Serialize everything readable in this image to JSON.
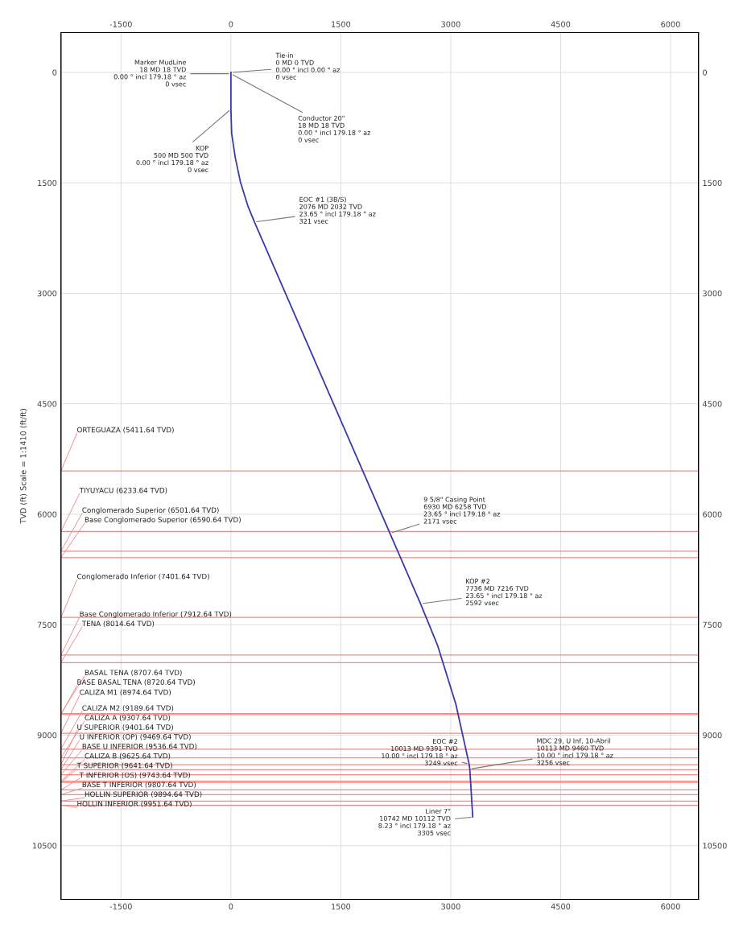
{
  "chart_data": {
    "type": "line",
    "ylabel": "TVD (ft) Scale = 1:1410 (ft/ft)",
    "xlim": [
      -2320,
      6380
    ],
    "xticks": [
      -1500,
      0,
      1500,
      3000,
      4500,
      6000
    ],
    "x2lim": [
      -2320,
      6380
    ],
    "x2ticks": [
      -1500,
      0,
      1500,
      3000,
      4500,
      6000
    ],
    "ylim": [
      11230,
      -540
    ],
    "yticks": [
      0,
      1500,
      3000,
      4500,
      6000,
      7500,
      9000,
      10500
    ],
    "y2lim": [
      11230,
      -540
    ],
    "y2ticks": [
      0,
      1500,
      3000,
      4500,
      6000,
      7500,
      9000,
      10500
    ],
    "grid": true,
    "marker": "none",
    "line_style": "solid",
    "series": [
      {
        "color": "#3a3aa8",
        "x": [
          0,
          0,
          10,
          60,
          130,
          230,
          320,
          2170,
          2590,
          2820,
          3070,
          3250,
          3260,
          3300
        ],
        "values": [
          0,
          500,
          830,
          1160,
          1490,
          1810,
          2030,
          6260,
          7220,
          7780,
          8580,
          9390,
          9460,
          10110
        ]
      }
    ],
    "annotations": [
      {
        "text": "Marker MudLine\n18 MD 18 TVD\n0.00 ° incl 179.18 ° az\n0 vsec",
        "x": 0,
        "y": 18
      },
      {
        "text": "Tie-in\n0 MD 0 TVD\n0.00 ° incl 0.00 ° az\n0 vsec",
        "x": 0,
        "y": 0
      },
      {
        "text": "Conductor 20\"\n18 MD 18 TVD\n0.00 ° incl 179.18 ° az\n0 vsec",
        "x": 0,
        "y": 18
      },
      {
        "text": "KOP\n500 MD 500 TVD\n0.00 ° incl 179.18 ° az\n0 vsec",
        "x": 0,
        "y": 500
      },
      {
        "text": "EOC #1 (3B/S)\n2076 MD 2032 TVD\n23.65 ° incl 179.18 ° az\n321 vsec",
        "x": 321,
        "y": 2032
      },
      {
        "text": "9 5/8\" Casing Point\n6930 MD 6258 TVD\n23.65 ° incl 179.18 ° az\n2171 vsec",
        "x": 2171,
        "y": 6258
      },
      {
        "text": "KOP #2\n7736 MD 7216 TVD\n23.65 ° incl 179.18 ° az\n2592 vsec",
        "x": 2592,
        "y": 7216
      },
      {
        "text": "EOC #2\n10013 MD 9391 TVD\n10.00 ° incl 179.18 ° az\n3249 vsec",
        "x": 3249,
        "y": 9391
      },
      {
        "text": "MDC 29, U Inf, 10-Abril\n10113 MD 9460 TVD\n10.00 ° incl 179.18 ° az\n3256 vsec",
        "x": 3256,
        "y": 9460
      },
      {
        "text": "Liner 7\"\n10742 MD 10112 TVD\n8.23 ° incl 179.18 ° az\n3305 vsec",
        "x": 3305,
        "y": 10112
      }
    ],
    "ref_lines": [
      {
        "axis": "y",
        "value": 5411.64,
        "label": "ORTEGUAZA (5411.64 TVD)",
        "color": "#f08a8a"
      },
      {
        "axis": "y",
        "value": 6233.64,
        "label": "TIYUYACU (6233.64 TVD)",
        "color": "#f08a8a"
      },
      {
        "axis": "y",
        "value": 6501.64,
        "label": "Conglomerado Superior (6501.64 TVD)",
        "color": "#f08a8a"
      },
      {
        "axis": "y",
        "value": 6590.64,
        "label": "Base Conglomerado Superior (6590.64 TVD)",
        "color": "#f08a8a"
      },
      {
        "axis": "y",
        "value": 7401.64,
        "label": "Conglomerado Inferior (7401.64 TVD)",
        "color": "#f08a8a"
      },
      {
        "axis": "y",
        "value": 7912.64,
        "label": "Base Conglomerado Inferior (7912.64 TVD)",
        "color": "#f08a8a"
      },
      {
        "axis": "y",
        "value": 8014.64,
        "label": "TENA (8014.64 TVD)",
        "color": "#f08a8a"
      },
      {
        "axis": "y",
        "value": 8707.64,
        "label": "BASAL TENA (8707.64 TVD)",
        "color": "#f08a8a"
      },
      {
        "axis": "y",
        "value": 8720.64,
        "label": "BASE BASAL TENA (8720.64 TVD)",
        "color": "#f08a8a"
      },
      {
        "axis": "y",
        "value": 8974.64,
        "label": "CALIZA M1 (8974.64 TVD)",
        "color": "#f08a8a"
      },
      {
        "axis": "y",
        "value": 9189.64,
        "label": "CALIZA M2 (9189.64 TVD)",
        "color": "#f08a8a"
      },
      {
        "axis": "y",
        "value": 9307.64,
        "label": "CALIZA A (9307.64 TVD)",
        "color": "#f08a8a"
      },
      {
        "axis": "y",
        "value": 9401.64,
        "label": "U SUPERIOR (9401.64 TVD)",
        "color": "#f08a8a"
      },
      {
        "axis": "y",
        "value": 9469.64,
        "label": "U INFERIOR (OP) (9469.64 TVD)",
        "color": "#f08a8a"
      },
      {
        "axis": "y",
        "value": 9536.64,
        "label": "BASE U INFERIOR (9536.64 TVD)",
        "color": "#f08a8a"
      },
      {
        "axis": "y",
        "value": 9625.64,
        "label": "CALIZA B (9625.64 TVD)",
        "color": "#f08a8a"
      },
      {
        "axis": "y",
        "value": 9641.64,
        "label": "T SUPERIOR (9641.64 TVD)",
        "color": "#f08a8a"
      },
      {
        "axis": "y",
        "value": 9743.64,
        "label": "T INFERIOR (OS) (9743.64 TVD)",
        "color": "#f08a8a"
      },
      {
        "axis": "y",
        "value": 9807.64,
        "label": "BASE T INFERIOR (9807.64 TVD)",
        "color": "#f08a8a"
      },
      {
        "axis": "y",
        "value": 9894.64,
        "label": "HOLLIN SUPERIOR (9894.64 TVD)",
        "color": "#f08a8a"
      },
      {
        "axis": "y",
        "value": 9951.64,
        "label": "HOLLIN INFERIOR (9951.64 TVD)",
        "color": "#f08a8a"
      }
    ]
  }
}
